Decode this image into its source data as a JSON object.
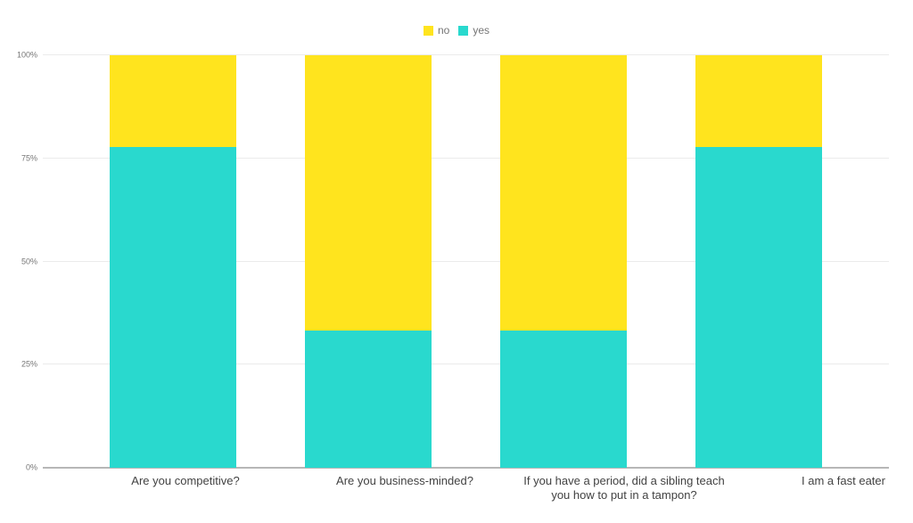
{
  "chart_data": {
    "type": "bar",
    "variant": "stacked-percent-columns",
    "title": "",
    "categories": [
      "Are you competitive?",
      "Are you business-minded?",
      "If you have a period, did a sibling teach you how to put in a tampon?",
      "I am a fast eater"
    ],
    "series": [
      {
        "name": "no",
        "color": "#FFE41E",
        "values": [
          22.2,
          66.7,
          66.7,
          22.2
        ]
      },
      {
        "name": "yes",
        "color": "#29D9CE",
        "values": [
          77.8,
          33.3,
          33.3,
          77.8
        ]
      }
    ],
    "xlabel": "",
    "ylabel": "",
    "ylim": [
      0,
      100
    ],
    "yticks": [
      {
        "value": 0,
        "label": "0%"
      },
      {
        "value": 25,
        "label": "25%"
      },
      {
        "value": 50,
        "label": "50%"
      },
      {
        "value": 75,
        "label": "75%"
      },
      {
        "value": 100,
        "label": "100%"
      }
    ],
    "grid": true,
    "legend_position": "top-center"
  },
  "styles": {
    "background": "#ffffff",
    "gridline_color": "#ebebeb",
    "baseline_color": "#b7b7b7",
    "tick_text_color": "#757575",
    "legend_text_color": "#757575",
    "category_text_color": "#424242"
  }
}
